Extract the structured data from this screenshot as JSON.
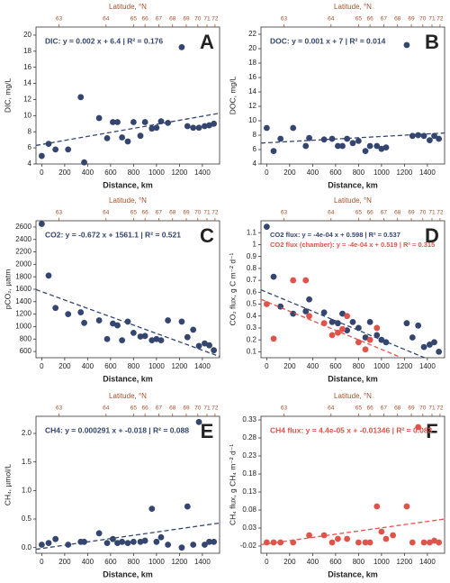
{
  "chart_data": [
    {
      "type": "scatter",
      "panel": "A",
      "ylabel": "DIC, mg/L",
      "xlabel": "Distance, km",
      "x2label": "Latitude, °N",
      "xlim": [
        -50,
        1550
      ],
      "xticks": [
        0,
        200,
        400,
        600,
        800,
        1000,
        1200,
        1400
      ],
      "x2ticks": [
        {
          "value": 150,
          "label": "63"
        },
        {
          "value": 560,
          "label": "64"
        },
        {
          "value": 800,
          "label": "65"
        },
        {
          "value": 900,
          "label": "66"
        },
        {
          "value": 1020,
          "label": "67"
        },
        {
          "value": 1140,
          "label": "68"
        },
        {
          "value": 1260,
          "label": "69"
        },
        {
          "value": 1360,
          "label": "70"
        },
        {
          "value": 1440,
          "label": "71"
        },
        {
          "value": 1510,
          "label": "72"
        }
      ],
      "ylim": [
        4,
        21
      ],
      "yticks": [
        4,
        6,
        8,
        10,
        12,
        14,
        16,
        18,
        20
      ],
      "series": [
        {
          "name": "DIC: y = 0.002 x + 6.4 | R² = 0.176",
          "color": "#34466f",
          "x": [
            0,
            60,
            120,
            230,
            340,
            370,
            500,
            570,
            620,
            660,
            700,
            750,
            800,
            860,
            900,
            960,
            1000,
            1040,
            1100,
            1220,
            1270,
            1320,
            1370,
            1420,
            1460,
            1500
          ],
          "values": [
            5,
            6.5,
            5.8,
            5.8,
            12.3,
            4.2,
            9.7,
            7.2,
            9.2,
            9.2,
            7.3,
            6.8,
            9.2,
            7.5,
            9.2,
            8.4,
            8.5,
            9.3,
            9.1,
            18.5,
            8.7,
            8.5,
            8.5,
            8.7,
            8.8,
            9
          ],
          "trend": [
            6.3,
            10.3
          ]
        }
      ]
    },
    {
      "type": "scatter",
      "panel": "B",
      "ylabel": "DOC, mg/L",
      "xlabel": "Distance, km",
      "x2label": "Latitude, °N",
      "xlim": [
        -50,
        1550
      ],
      "xticks": [
        0,
        200,
        400,
        600,
        800,
        1000,
        1200,
        1400
      ],
      "x2ticks": [
        {
          "value": 150,
          "label": "63"
        },
        {
          "value": 560,
          "label": "64"
        },
        {
          "value": 800,
          "label": "65"
        },
        {
          "value": 900,
          "label": "66"
        },
        {
          "value": 1020,
          "label": "67"
        },
        {
          "value": 1140,
          "label": "68"
        },
        {
          "value": 1260,
          "label": "69"
        },
        {
          "value": 1360,
          "label": "70"
        },
        {
          "value": 1440,
          "label": "71"
        },
        {
          "value": 1510,
          "label": "72"
        }
      ],
      "ylim": [
        4,
        23
      ],
      "yticks": [
        4,
        6,
        8,
        10,
        12,
        14,
        16,
        18,
        20,
        22
      ],
      "series": [
        {
          "name": "DOC: y = 0.001 x + 7 | R² = 0.014",
          "color": "#34466f",
          "x": [
            0,
            60,
            120,
            230,
            340,
            370,
            500,
            570,
            620,
            660,
            700,
            750,
            800,
            860,
            900,
            960,
            1000,
            1040,
            1220,
            1270,
            1320,
            1370,
            1420,
            1460,
            1500
          ],
          "values": [
            9,
            5.8,
            7.5,
            9,
            6.5,
            7.6,
            7.4,
            7.5,
            6.5,
            6.5,
            7.5,
            6.9,
            7.2,
            5.8,
            6.5,
            6.5,
            6.1,
            6.3,
            20.5,
            7.9,
            8,
            7.9,
            7.3,
            7.9,
            7.5
          ],
          "trend": [
            6.9,
            8.3
          ]
        }
      ]
    },
    {
      "type": "scatter",
      "panel": "C",
      "ylabel": "pCO₂, µatm",
      "xlabel": "Distance, km",
      "x2label": "Latitude, °N",
      "xlim": [
        -50,
        1550
      ],
      "xticks": [
        0,
        200,
        400,
        600,
        800,
        1000,
        1200,
        1400
      ],
      "x2ticks": [
        {
          "value": 150,
          "label": "63"
        },
        {
          "value": 560,
          "label": "64"
        },
        {
          "value": 800,
          "label": "65"
        },
        {
          "value": 900,
          "label": "66"
        },
        {
          "value": 1020,
          "label": "67"
        },
        {
          "value": 1140,
          "label": "68"
        },
        {
          "value": 1260,
          "label": "69"
        },
        {
          "value": 1360,
          "label": "70"
        },
        {
          "value": 1440,
          "label": "71"
        },
        {
          "value": 1510,
          "label": "72"
        }
      ],
      "ylim": [
        500,
        2700
      ],
      "yticks": [
        600,
        800,
        1000,
        1200,
        1400,
        1600,
        1800,
        2000,
        2200,
        2400,
        2600
      ],
      "series": [
        {
          "name": "CO2: y = -0.672 x + 1561.1 | R² = 0.521",
          "color": "#34466f",
          "x": [
            0,
            60,
            120,
            230,
            340,
            370,
            500,
            570,
            620,
            660,
            700,
            750,
            800,
            860,
            900,
            960,
            1000,
            1040,
            1100,
            1220,
            1270,
            1320,
            1370,
            1420,
            1460,
            1500
          ],
          "values": [
            2650,
            1820,
            1300,
            1200,
            1230,
            1060,
            1100,
            800,
            1050,
            1020,
            780,
            1080,
            900,
            840,
            850,
            780,
            800,
            780,
            1100,
            1080,
            830,
            950,
            690,
            730,
            700,
            620
          ],
          "trend": [
            1595,
            520
          ]
        }
      ]
    },
    {
      "type": "scatter",
      "panel": "D",
      "ylabel": "CO₂ flux, g C m⁻² d⁻¹",
      "xlabel": "Distance, km",
      "x2label": "Latitude, °N",
      "xlim": [
        -50,
        1550
      ],
      "xticks": [
        0,
        200,
        400,
        600,
        800,
        1000,
        1200,
        1400
      ],
      "x2ticks": [
        {
          "value": 150,
          "label": "63"
        },
        {
          "value": 560,
          "label": "64"
        },
        {
          "value": 800,
          "label": "65"
        },
        {
          "value": 900,
          "label": "66"
        },
        {
          "value": 1020,
          "label": "67"
        },
        {
          "value": 1140,
          "label": "68"
        },
        {
          "value": 1260,
          "label": "69"
        },
        {
          "value": 1360,
          "label": "70"
        },
        {
          "value": 1440,
          "label": "71"
        },
        {
          "value": 1510,
          "label": "72"
        }
      ],
      "ylim": [
        0.05,
        1.2
      ],
      "yticks": [
        0.1,
        0.2,
        0.3,
        0.4,
        0.5,
        0.6,
        0.7,
        0.8,
        0.9,
        1.0,
        1.1
      ],
      "series": [
        {
          "name": "CO2 flux: y = -4e-04 x + 0.598 | R² = 0.537",
          "color": "#34466f",
          "x": [
            0,
            60,
            120,
            230,
            340,
            370,
            500,
            570,
            620,
            660,
            700,
            750,
            800,
            860,
            900,
            960,
            1000,
            1040,
            1220,
            1270,
            1320,
            1370,
            1420,
            1460,
            1500
          ],
          "values": [
            1.15,
            0.73,
            0.48,
            0.42,
            0.44,
            0.54,
            0.43,
            0.35,
            0.34,
            0.42,
            0.28,
            0.35,
            0.3,
            0.22,
            0.35,
            0.24,
            0.2,
            0.18,
            0.34,
            0.22,
            0.32,
            0.14,
            0.16,
            0.18,
            0.1
          ],
          "trend": [
            0.62,
            -0.02
          ]
        },
        {
          "name": "CO2 flux (chamber): y = -4e-04 x + 0.519 | R² = 0.315",
          "color": "#e0534a",
          "x": [
            0,
            60,
            230,
            340,
            370,
            500,
            570,
            620,
            660,
            700,
            800,
            860,
            900,
            960
          ],
          "values": [
            0.5,
            0.21,
            0.7,
            0.7,
            0.4,
            0.34,
            0.24,
            0.26,
            0.29,
            0.4,
            0.18,
            0.12,
            0.2,
            0.3
          ],
          "trend": [
            0.54,
            -0.1
          ]
        }
      ]
    },
    {
      "type": "scatter",
      "panel": "E",
      "ylabel": "CH₄, µmol/L",
      "xlabel": "Distance, km",
      "x2label": "Latitude, °N",
      "xlim": [
        -50,
        1550
      ],
      "xticks": [
        0,
        200,
        400,
        600,
        800,
        1000,
        1200,
        1400
      ],
      "x2ticks": [
        {
          "value": 150,
          "label": "63"
        },
        {
          "value": 560,
          "label": "64"
        },
        {
          "value": 800,
          "label": "65"
        },
        {
          "value": 900,
          "label": "66"
        },
        {
          "value": 1020,
          "label": "67"
        },
        {
          "value": 1140,
          "label": "68"
        },
        {
          "value": 1260,
          "label": "69"
        },
        {
          "value": 1360,
          "label": "70"
        },
        {
          "value": 1440,
          "label": "71"
        },
        {
          "value": 1510,
          "label": "72"
        }
      ],
      "ylim": [
        -0.1,
        2.3
      ],
      "yticks": [
        {
          "value": 0,
          "label": "0.0"
        },
        {
          "value": 0.5,
          "label": "0.5"
        },
        {
          "value": 1,
          "label": "1.0"
        },
        {
          "value": 1.5,
          "label": "1.5"
        },
        {
          "value": 2,
          "label": "2.0"
        }
      ],
      "series": [
        {
          "name": "CH4: y = 0.000291 x + -0.018 | R² = 0.088",
          "color": "#34466f",
          "x": [
            0,
            60,
            120,
            230,
            340,
            370,
            500,
            570,
            620,
            660,
            700,
            750,
            800,
            860,
            900,
            960,
            1000,
            1040,
            1100,
            1220,
            1270,
            1320,
            1370,
            1420,
            1460,
            1500
          ],
          "values": [
            0.05,
            0.08,
            0.15,
            0.05,
            0.1,
            0.1,
            0.25,
            0.08,
            0.15,
            0.08,
            0.1,
            0.08,
            0.1,
            0.1,
            0.12,
            0.68,
            0.1,
            0.18,
            0.05,
            0.0,
            0.72,
            0.05,
            2.2,
            0.05,
            0.1,
            0.1
          ],
          "trend": [
            -0.03,
            0.43
          ]
        }
      ]
    },
    {
      "type": "scatter",
      "panel": "F",
      "ylabel": "CH₄ flux, g CH₄ m⁻² d⁻¹",
      "xlabel": "Distance, km",
      "x2label": "Latitude, °N",
      "xlim": [
        -50,
        1550
      ],
      "xticks": [
        0,
        200,
        400,
        600,
        800,
        1000,
        1200,
        1400
      ],
      "x2ticks": [
        {
          "value": 150,
          "label": "63"
        },
        {
          "value": 560,
          "label": "64"
        },
        {
          "value": 800,
          "label": "65"
        },
        {
          "value": 900,
          "label": "66"
        },
        {
          "value": 1020,
          "label": "67"
        },
        {
          "value": 1140,
          "label": "68"
        },
        {
          "value": 1260,
          "label": "69"
        },
        {
          "value": 1360,
          "label": "70"
        },
        {
          "value": 1440,
          "label": "71"
        },
        {
          "value": 1510,
          "label": "72"
        }
      ],
      "ylim": [
        -0.04,
        0.34
      ],
      "yticks": [
        -0.02,
        0.03,
        0.08,
        0.13,
        0.18,
        0.23,
        0.28,
        0.33
      ],
      "series": [
        {
          "name": "CH4 flux: y = 4.4e-05 x + -0.01346 | R² = 0.083",
          "color": "#e0534a",
          "x": [
            0,
            60,
            120,
            230,
            370,
            500,
            570,
            620,
            700,
            800,
            860,
            900,
            960,
            1000,
            1040,
            1100,
            1220,
            1270,
            1320,
            1370,
            1420,
            1460,
            1500
          ],
          "values": [
            -0.01,
            -0.01,
            -0.01,
            -0.01,
            0.01,
            0.01,
            -0.01,
            0,
            0,
            -0.01,
            -0.01,
            -0.01,
            0.09,
            0.02,
            0,
            0.01,
            0.09,
            -0.01,
            0.31,
            -0.01,
            -0.01,
            -0.005,
            -0.01
          ],
          "trend": [
            -0.016,
            0.055
          ]
        }
      ]
    }
  ]
}
